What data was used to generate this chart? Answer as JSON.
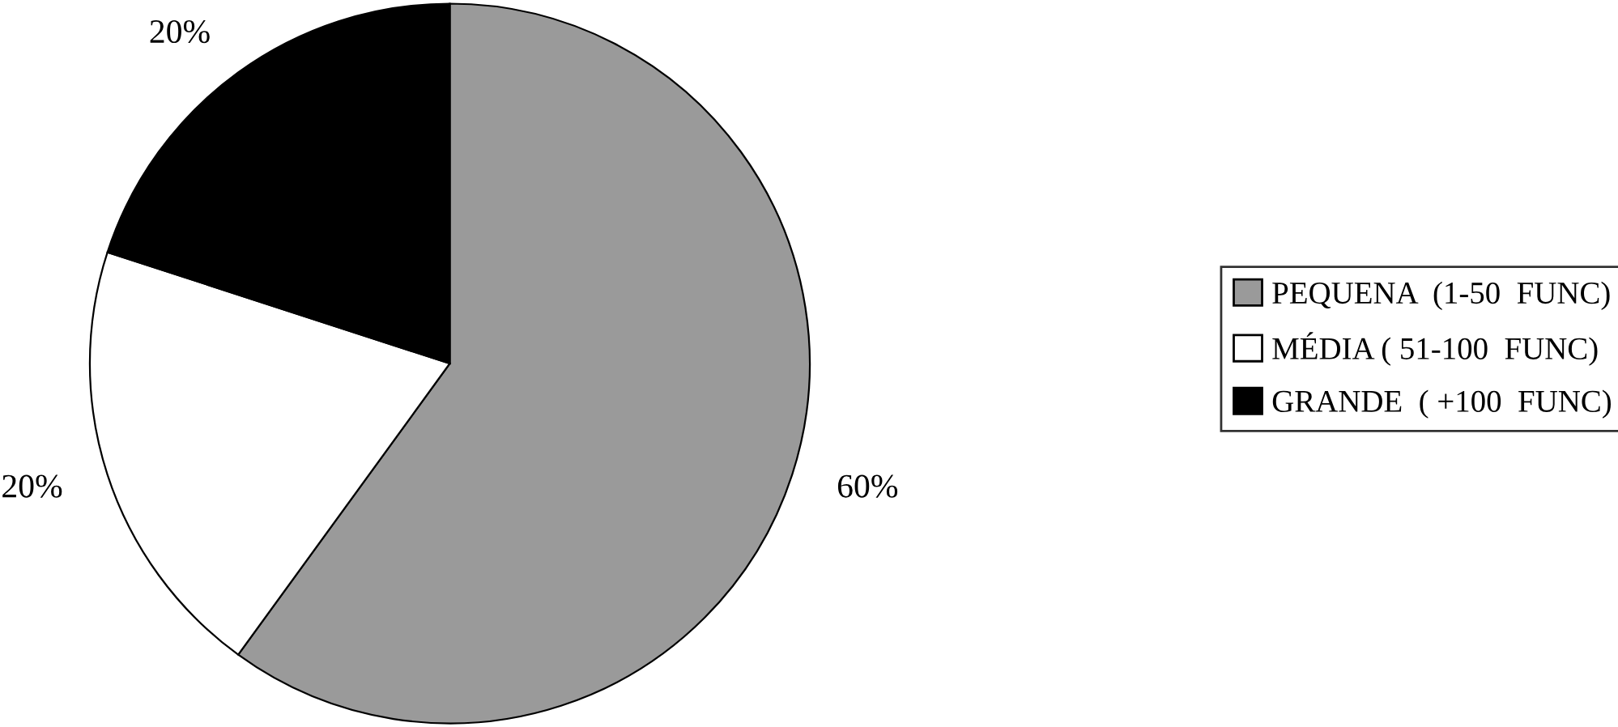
{
  "chart_data": {
    "type": "pie",
    "categories": [
      "PEQUENA  (1-50  FUNC)",
      "MÉDIA ( 51-100  FUNC)",
      "GRANDE  ( +100  FUNC)"
    ],
    "values": [
      60,
      20,
      20
    ],
    "value_labels": [
      "60%",
      "20%",
      "20%"
    ],
    "colors": [
      "#9a9a9a",
      "#ffffff",
      "#000000"
    ],
    "legend": "right"
  }
}
